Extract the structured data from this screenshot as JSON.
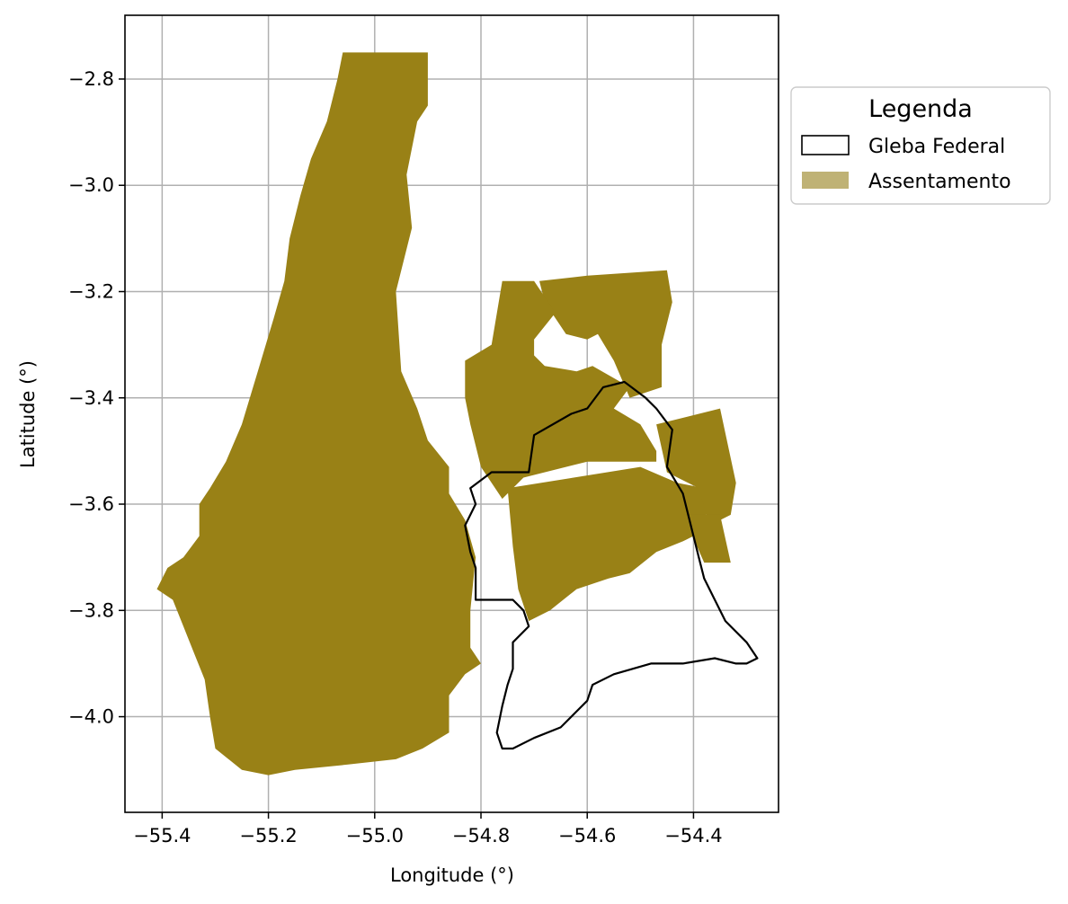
{
  "colors": {
    "assentamento_fill": "#998116",
    "assentamento_legend": "#bfb275",
    "gleba_edge": "#000000",
    "grid": "#b0b0b0"
  },
  "chart_data": {
    "type": "map",
    "xlabel": "Longitude (°)",
    "ylabel": "Latitude (°)",
    "xlim": [
      -55.47,
      -54.24
    ],
    "ylim": [
      -4.18,
      -2.68
    ],
    "xticks": [
      -55.4,
      -55.2,
      -55.0,
      -54.8,
      -54.6,
      -54.4
    ],
    "xtick_labels": [
      "−55.4",
      "−55.2",
      "−55.0",
      "−54.8",
      "−54.6",
      "−54.4"
    ],
    "yticks": [
      -2.8,
      -3.0,
      -3.2,
      -3.4,
      -3.6,
      -3.8,
      -4.0
    ],
    "ytick_labels": [
      "−2.8",
      "−3.0",
      "−3.2",
      "−3.4",
      "−3.6",
      "−3.8",
      "−4.0"
    ],
    "grid": true,
    "legend": {
      "title": "Legenda",
      "placement": "outside-upper-right",
      "entries": [
        {
          "label": "Gleba Federal",
          "style": "outline"
        },
        {
          "label": "Assentamento",
          "style": "filled"
        }
      ]
    },
    "layers": [
      {
        "name": "Assentamento",
        "polygons": [
          [
            [
              -54.9,
              -2.75
            ],
            [
              -54.9,
              -2.85
            ],
            [
              -54.92,
              -2.88
            ],
            [
              -54.94,
              -2.98
            ],
            [
              -54.93,
              -3.08
            ],
            [
              -54.96,
              -3.2
            ],
            [
              -54.95,
              -3.35
            ],
            [
              -54.92,
              -3.42
            ],
            [
              -54.9,
              -3.48
            ],
            [
              -54.86,
              -3.53
            ],
            [
              -54.86,
              -3.58
            ],
            [
              -54.83,
              -3.63
            ],
            [
              -54.81,
              -3.7
            ],
            [
              -54.82,
              -3.8
            ],
            [
              -54.82,
              -3.87
            ],
            [
              -54.8,
              -3.9
            ],
            [
              -54.83,
              -3.92
            ],
            [
              -54.86,
              -3.96
            ],
            [
              -54.86,
              -4.03
            ],
            [
              -54.91,
              -4.06
            ],
            [
              -54.96,
              -4.08
            ],
            [
              -55.05,
              -4.09
            ],
            [
              -55.15,
              -4.1
            ],
            [
              -55.2,
              -4.11
            ],
            [
              -55.25,
              -4.1
            ],
            [
              -55.3,
              -4.06
            ],
            [
              -55.31,
              -4.0
            ],
            [
              -55.32,
              -3.93
            ],
            [
              -55.34,
              -3.88
            ],
            [
              -55.36,
              -3.83
            ],
            [
              -55.38,
              -3.78
            ],
            [
              -55.41,
              -3.76
            ],
            [
              -55.39,
              -3.72
            ],
            [
              -55.36,
              -3.7
            ],
            [
              -55.33,
              -3.66
            ],
            [
              -55.33,
              -3.6
            ],
            [
              -55.31,
              -3.57
            ],
            [
              -55.28,
              -3.52
            ],
            [
              -55.25,
              -3.45
            ],
            [
              -55.22,
              -3.35
            ],
            [
              -55.19,
              -3.25
            ],
            [
              -55.17,
              -3.18
            ],
            [
              -55.16,
              -3.1
            ],
            [
              -55.14,
              -3.02
            ],
            [
              -55.12,
              -2.95
            ],
            [
              -55.09,
              -2.88
            ],
            [
              -55.07,
              -2.8
            ],
            [
              -55.06,
              -2.75
            ]
          ],
          [
            [
              -54.69,
              -3.18
            ],
            [
              -54.6,
              -3.17
            ],
            [
              -54.45,
              -3.16
            ],
            [
              -54.44,
              -3.22
            ],
            [
              -54.46,
              -3.3
            ],
            [
              -54.46,
              -3.38
            ],
            [
              -54.52,
              -3.4
            ],
            [
              -54.55,
              -3.33
            ],
            [
              -54.58,
              -3.28
            ],
            [
              -54.6,
              -3.29
            ],
            [
              -54.64,
              -3.28
            ],
            [
              -54.68,
              -3.22
            ]
          ],
          [
            [
              -54.76,
              -3.18
            ],
            [
              -54.7,
              -3.18
            ],
            [
              -54.66,
              -3.24
            ],
            [
              -54.7,
              -3.29
            ],
            [
              -54.7,
              -3.32
            ],
            [
              -54.68,
              -3.34
            ],
            [
              -54.62,
              -3.35
            ],
            [
              -54.59,
              -3.34
            ],
            [
              -54.52,
              -3.38
            ],
            [
              -54.55,
              -3.42
            ],
            [
              -54.5,
              -3.45
            ],
            [
              -54.47,
              -3.5
            ],
            [
              -54.47,
              -3.52
            ],
            [
              -54.6,
              -3.52
            ],
            [
              -54.72,
              -3.55
            ],
            [
              -54.76,
              -3.59
            ],
            [
              -54.8,
              -3.53
            ],
            [
              -54.82,
              -3.45
            ],
            [
              -54.83,
              -3.4
            ],
            [
              -54.83,
              -3.33
            ],
            [
              -54.78,
              -3.3
            ]
          ],
          [
            [
              -54.75,
              -3.57
            ],
            [
              -54.5,
              -3.53
            ],
            [
              -54.43,
              -3.56
            ],
            [
              -54.38,
              -3.57
            ],
            [
              -54.37,
              -3.61
            ],
            [
              -54.4,
              -3.66
            ],
            [
              -54.42,
              -3.67
            ],
            [
              -54.47,
              -3.69
            ],
            [
              -54.52,
              -3.73
            ],
            [
              -54.56,
              -3.74
            ],
            [
              -54.62,
              -3.76
            ],
            [
              -54.67,
              -3.8
            ],
            [
              -54.71,
              -3.82
            ],
            [
              -54.73,
              -3.76
            ],
            [
              -54.74,
              -3.68
            ]
          ],
          [
            [
              -54.35,
              -3.42
            ],
            [
              -54.47,
              -3.45
            ],
            [
              -54.45,
              -3.54
            ],
            [
              -54.39,
              -3.57
            ],
            [
              -54.37,
              -3.64
            ],
            [
              -54.33,
              -3.62
            ],
            [
              -54.32,
              -3.56
            ]
          ],
          [
            [
              -54.42,
              -3.62
            ],
            [
              -54.35,
              -3.62
            ],
            [
              -54.33,
              -3.71
            ],
            [
              -54.38,
              -3.71
            ]
          ]
        ]
      },
      {
        "name": "Gleba Federal",
        "polygons": [
          [
            [
              -54.82,
              -3.57
            ],
            [
              -54.78,
              -3.54
            ],
            [
              -54.74,
              -3.54
            ],
            [
              -54.71,
              -3.54
            ],
            [
              -54.7,
              -3.47
            ],
            [
              -54.63,
              -3.43
            ],
            [
              -54.6,
              -3.42
            ],
            [
              -54.57,
              -3.38
            ],
            [
              -54.53,
              -3.37
            ],
            [
              -54.49,
              -3.4
            ],
            [
              -54.47,
              -3.42
            ],
            [
              -54.44,
              -3.46
            ],
            [
              -54.45,
              -3.53
            ],
            [
              -54.42,
              -3.58
            ],
            [
              -54.41,
              -3.62
            ],
            [
              -54.4,
              -3.66
            ],
            [
              -54.39,
              -3.7
            ],
            [
              -54.38,
              -3.74
            ],
            [
              -54.36,
              -3.78
            ],
            [
              -54.34,
              -3.82
            ],
            [
              -54.3,
              -3.86
            ],
            [
              -54.28,
              -3.89
            ],
            [
              -54.3,
              -3.9
            ],
            [
              -54.32,
              -3.9
            ],
            [
              -54.36,
              -3.89
            ],
            [
              -54.42,
              -3.9
            ],
            [
              -54.48,
              -3.9
            ],
            [
              -54.55,
              -3.92
            ],
            [
              -54.59,
              -3.94
            ],
            [
              -54.6,
              -3.97
            ],
            [
              -54.62,
              -3.99
            ],
            [
              -54.65,
              -4.02
            ],
            [
              -54.7,
              -4.04
            ],
            [
              -54.74,
              -4.06
            ],
            [
              -54.76,
              -4.06
            ],
            [
              -54.77,
              -4.03
            ],
            [
              -54.76,
              -3.98
            ],
            [
              -54.75,
              -3.94
            ],
            [
              -54.74,
              -3.91
            ],
            [
              -54.74,
              -3.86
            ],
            [
              -54.71,
              -3.83
            ],
            [
              -54.72,
              -3.8
            ],
            [
              -54.74,
              -3.78
            ],
            [
              -54.78,
              -3.78
            ],
            [
              -54.81,
              -3.78
            ],
            [
              -54.81,
              -3.72
            ],
            [
              -54.82,
              -3.69
            ],
            [
              -54.83,
              -3.64
            ],
            [
              -54.81,
              -3.6
            ]
          ]
        ]
      }
    ]
  }
}
